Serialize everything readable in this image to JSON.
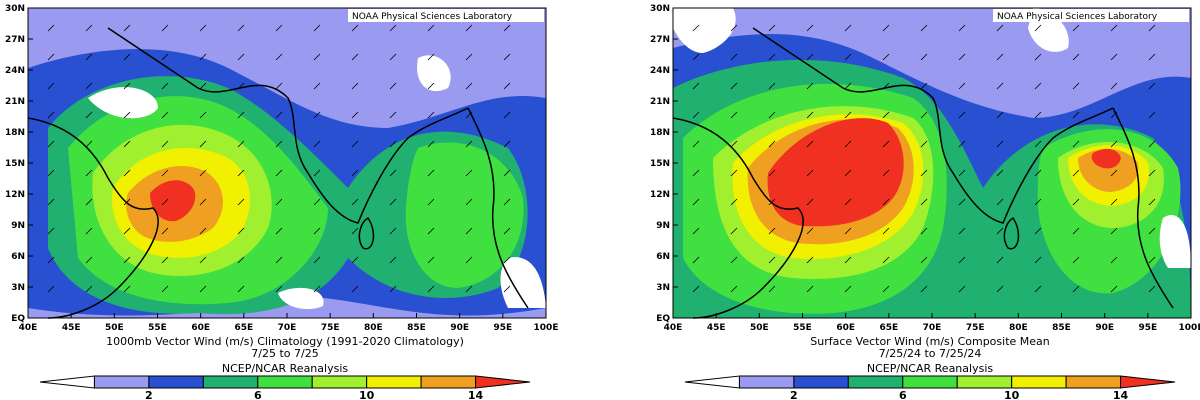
{
  "panels": [
    {
      "source_label": "NOAA Physical Sciences Laboratory",
      "caption_line1": "1000mb Vector Wind (m/s) Climatology (1991-2020 Climatology)",
      "caption_line2": "7/25  to 7/25",
      "colorbar_title": "NCEP/NCAR Reanalysis"
    },
    {
      "source_label": "NOAA Physical Sciences Laboratory",
      "caption_line1": "Surface Vector Wind (m/s) Composite Mean",
      "caption_line2": "7/25/24  to 7/25/24",
      "colorbar_title": "NCEP/NCAR Reanalysis"
    }
  ],
  "axes": {
    "lat_ticks": [
      "30N",
      "27N",
      "24N",
      "21N",
      "18N",
      "15N",
      "12N",
      "9N",
      "6N",
      "3N",
      "EQ"
    ],
    "lon_ticks": [
      "40E",
      "45E",
      "50E",
      "55E",
      "60E",
      "65E",
      "70E",
      "75E",
      "80E",
      "85E",
      "90E",
      "95E",
      "100E"
    ]
  },
  "colorbar": {
    "colors": [
      "#ffffff",
      "#9a9af0",
      "#2850d0",
      "#20b070",
      "#40e040",
      "#a0f030",
      "#f0f000",
      "#f0a020",
      "#f03020"
    ],
    "tick_labels": [
      "2",
      "6",
      "10",
      "14"
    ]
  }
}
